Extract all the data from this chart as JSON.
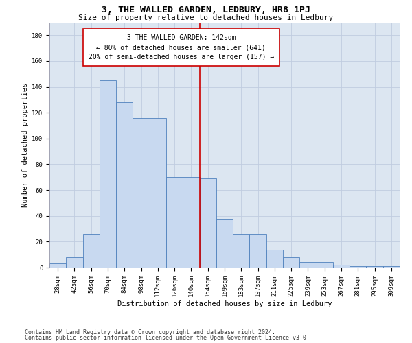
{
  "title": "3, THE WALLED GARDEN, LEDBURY, HR8 1PJ",
  "subtitle": "Size of property relative to detached houses in Ledbury",
  "xlabel": "Distribution of detached houses by size in Ledbury",
  "ylabel": "Number of detached properties",
  "footnote1": "Contains HM Land Registry data © Crown copyright and database right 2024.",
  "footnote2": "Contains public sector information licensed under the Open Government Licence v3.0.",
  "bar_labels": [
    "28sqm",
    "42sqm",
    "56sqm",
    "70sqm",
    "84sqm",
    "98sqm",
    "112sqm",
    "126sqm",
    "140sqm",
    "154sqm",
    "169sqm",
    "183sqm",
    "197sqm",
    "211sqm",
    "225sqm",
    "239sqm",
    "253sqm",
    "267sqm",
    "281sqm",
    "295sqm",
    "309sqm"
  ],
  "bar_heights": [
    3,
    8,
    26,
    145,
    128,
    116,
    116,
    70,
    70,
    69,
    38,
    26,
    26,
    14,
    8,
    4,
    4,
    2,
    1,
    1,
    1
  ],
  "bar_color": "#c8d9f0",
  "bar_edge_color": "#4f81bd",
  "grid_color": "#c0cce0",
  "bg_color": "#dce6f1",
  "vline_x": 8.5,
  "vline_color": "#cc0000",
  "annotation_text": "3 THE WALLED GARDEN: 142sqm\n← 80% of detached houses are smaller (641)\n20% of semi-detached houses are larger (157) →",
  "annotation_box_color": "#cc0000",
  "ylim": [
    0,
    190
  ],
  "yticks": [
    0,
    20,
    40,
    60,
    80,
    100,
    120,
    140,
    160,
    180
  ],
  "title_fontsize": 9.5,
  "subtitle_fontsize": 8,
  "axis_label_fontsize": 7.5,
  "tick_fontsize": 6.5,
  "annotation_fontsize": 7,
  "footnote_fontsize": 6
}
